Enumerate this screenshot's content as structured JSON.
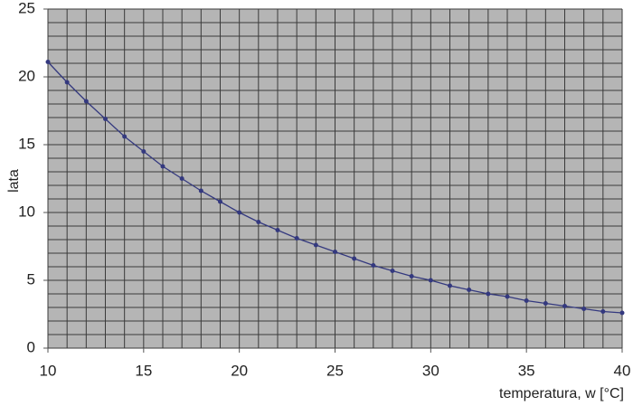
{
  "chart_data": {
    "type": "line",
    "x_label": "temperatura, w [°C]",
    "y_label": "lata",
    "x": [
      10,
      11,
      12,
      13,
      14,
      15,
      16,
      17,
      18,
      19,
      20,
      21,
      22,
      23,
      24,
      25,
      26,
      27,
      28,
      29,
      30,
      31,
      32,
      33,
      34,
      35,
      36,
      37,
      38,
      39,
      40
    ],
    "series": [
      {
        "name": "lata",
        "color": "#34397f",
        "values": [
          21.1,
          19.6,
          18.2,
          16.9,
          15.6,
          14.5,
          13.4,
          12.5,
          11.6,
          10.8,
          10.0,
          9.3,
          8.7,
          8.1,
          7.6,
          7.1,
          6.6,
          6.1,
          5.7,
          5.3,
          5.0,
          4.6,
          4.3,
          4.0,
          3.8,
          3.5,
          3.3,
          3.1,
          2.9,
          2.7,
          2.6
        ]
      }
    ],
    "xlim": [
      10,
      40
    ],
    "ylim": [
      0,
      25
    ],
    "xticks": [
      10,
      15,
      20,
      25,
      30,
      35,
      40
    ],
    "yticks": [
      0,
      5,
      10,
      15,
      20,
      25
    ],
    "xminorticks": [
      10,
      11,
      12,
      13,
      14,
      15,
      16,
      17,
      18,
      19,
      20,
      21,
      22,
      23,
      24,
      25,
      26,
      27,
      28,
      29,
      30,
      31,
      32,
      33,
      34,
      35,
      36,
      37,
      38,
      39,
      40
    ],
    "yminorticks": [
      0,
      1,
      2,
      3,
      4,
      5,
      6,
      7,
      8,
      9,
      10,
      11,
      12,
      13,
      14,
      15,
      16,
      17,
      18,
      19,
      20,
      21,
      22,
      23,
      24,
      25
    ],
    "grid": true,
    "plot_background": "#b5b5b5",
    "grid_color": "#3a3a3a"
  }
}
